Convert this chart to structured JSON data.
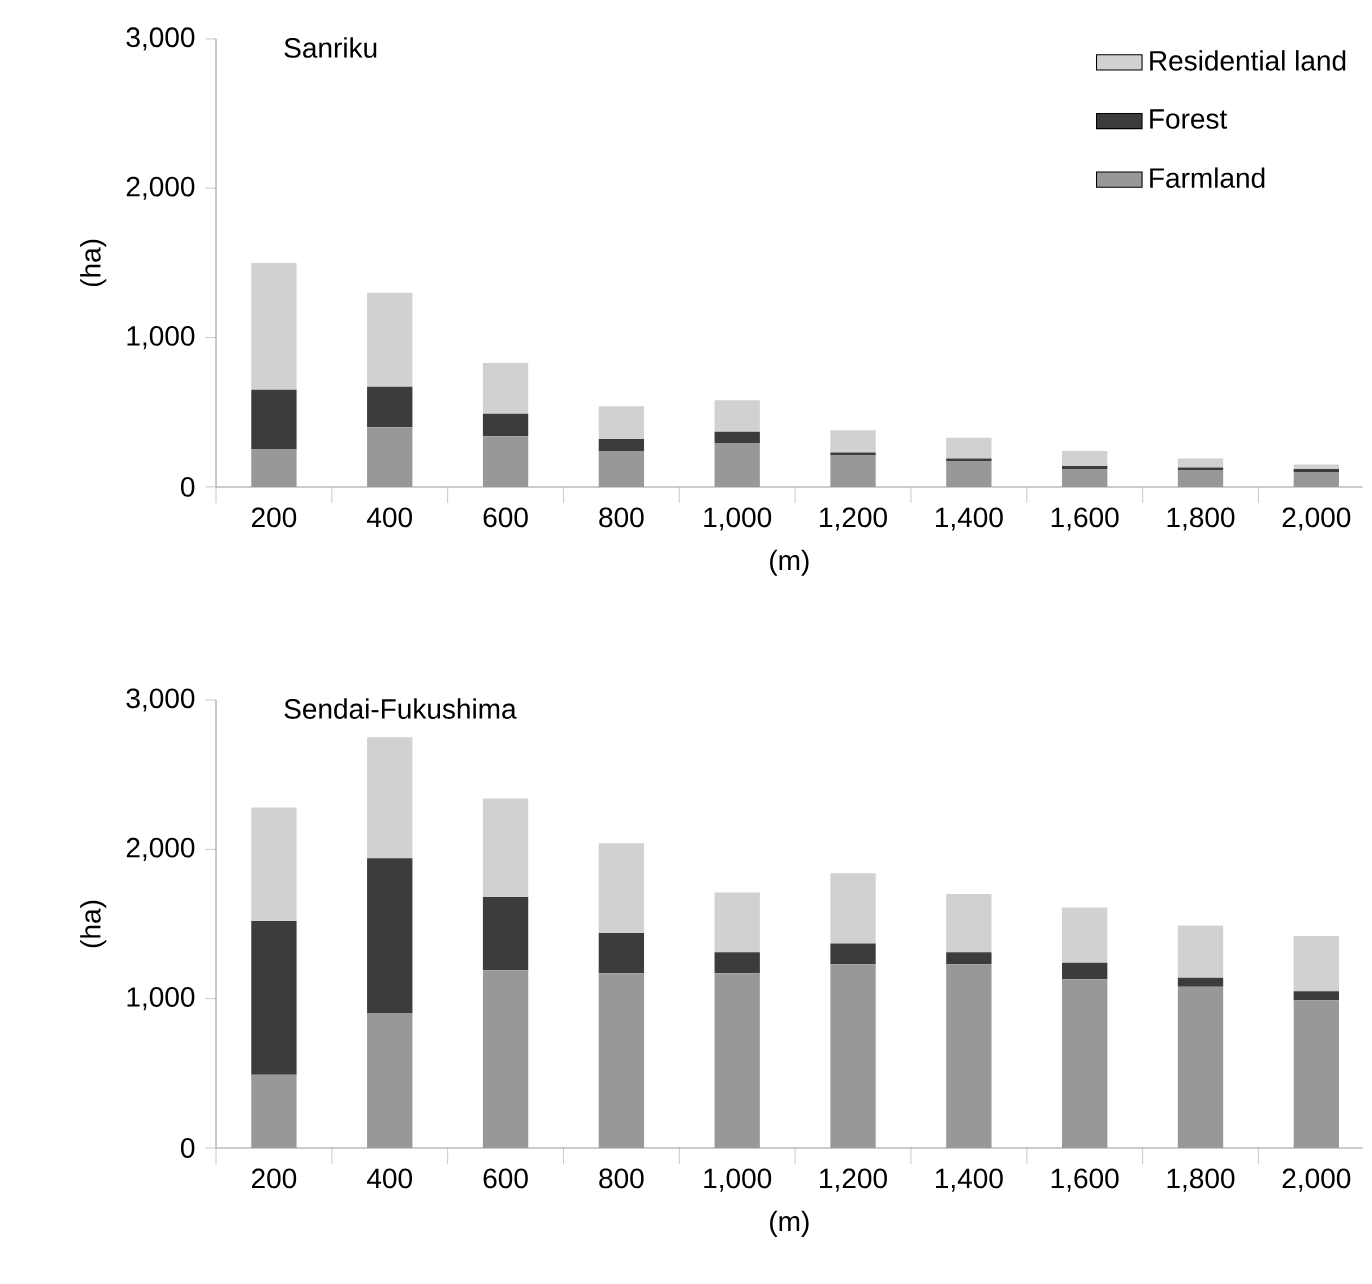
{
  "chart_data": [
    {
      "type": "bar",
      "stacked": true,
      "title": "Sanriku",
      "xlabel": "(m)",
      "ylabel": "(ha)",
      "legend": "top right",
      "categories": [
        "200",
        "400",
        "600",
        "800",
        "1,000",
        "1,200",
        "1,400",
        "1,600",
        "1,800",
        "2,000"
      ],
      "ylim": [
        0,
        3000
      ],
      "yticks": [
        0,
        {
          "value": 1000,
          "label": "1,000"
        },
        {
          "value": 2000,
          "label": "2,000"
        },
        {
          "value": 3000,
          "label": "3,000"
        }
      ],
      "series": [
        {
          "name": "Farmland",
          "color": "#989898",
          "values": [
            250,
            400,
            340,
            240,
            290,
            210,
            170,
            120,
            110,
            100
          ]
        },
        {
          "name": "Forest",
          "color": "#3c3c3c",
          "values": [
            400,
            270,
            150,
            80,
            80,
            20,
            20,
            20,
            20,
            20
          ]
        },
        {
          "name": "Residential land",
          "color": "#d0d1d1",
          "values": [
            850,
            630,
            340,
            220,
            210,
            150,
            140,
            100,
            60,
            30
          ]
        }
      ]
    },
    {
      "type": "bar",
      "stacked": true,
      "title": "Sendai-Fukushima",
      "xlabel": "(m)",
      "ylabel": "(ha)",
      "categories": [
        "200",
        "400",
        "600",
        "800",
        "1,000",
        "1,200",
        "1,400",
        "1,600",
        "1,800",
        "2,000"
      ],
      "ylim": [
        0,
        3000
      ],
      "yticks": [
        0,
        {
          "value": 1000,
          "label": "1,000"
        },
        {
          "value": 2000,
          "label": "2,000"
        },
        {
          "value": 3000,
          "label": "3,000"
        }
      ],
      "series": [
        {
          "color": "#989898",
          "values": [
            490,
            900,
            1190,
            1170,
            1170,
            1230,
            1230,
            1130,
            1080,
            990
          ]
        },
        {
          "color": "#3c3c3c",
          "values": [
            1030,
            1040,
            490,
            270,
            140,
            140,
            80,
            110,
            60,
            60
          ]
        },
        {
          "color": "#d0d1d1",
          "values": [
            760,
            810,
            660,
            600,
            400,
            470,
            390,
            370,
            350,
            370
          ]
        }
      ]
    }
  ]
}
